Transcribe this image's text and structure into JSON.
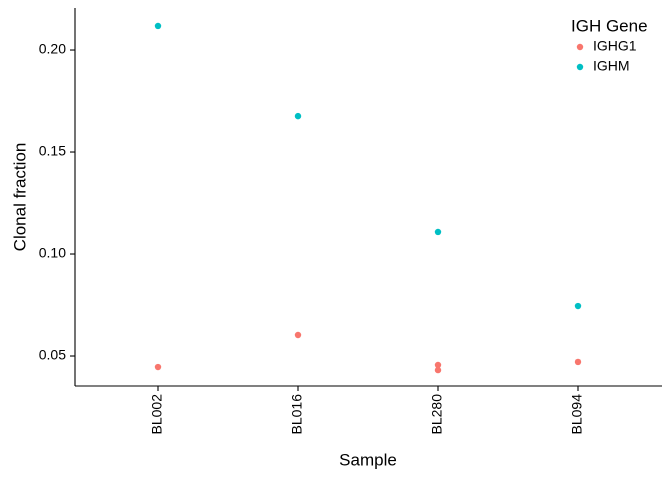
{
  "chart_data": {
    "type": "strip",
    "x_label": "Sample",
    "y_label": "Clonal fraction",
    "categories": [
      "BL002",
      "BL016",
      "BL280",
      "BL094"
    ],
    "series": [
      {
        "name": "IGHG1",
        "color": "#F8766D",
        "x": [
          "BL002",
          "BL016",
          "BL280",
          "BL280",
          "BL094"
        ],
        "values": [
          0.0446,
          0.0603,
          0.0456,
          0.0431,
          0.0471
        ]
      },
      {
        "name": "IGHM",
        "color": "#00BFC4",
        "x": [
          "BL002",
          "BL016",
          "BL280",
          "BL094"
        ],
        "values": [
          0.2118,
          0.1676,
          0.1108,
          0.0745
        ]
      }
    ],
    "ylim": [
      0.0353,
      0.2206
    ],
    "yticks": [
      0.05,
      {
        "value": 0.1,
        "label": "0.10"
      },
      0.15,
      {
        "value": 0.2,
        "label": "0.20"
      }
    ],
    "grid": false,
    "legend": {
      "title": "IGH Gene",
      "position": "top-right"
    }
  }
}
